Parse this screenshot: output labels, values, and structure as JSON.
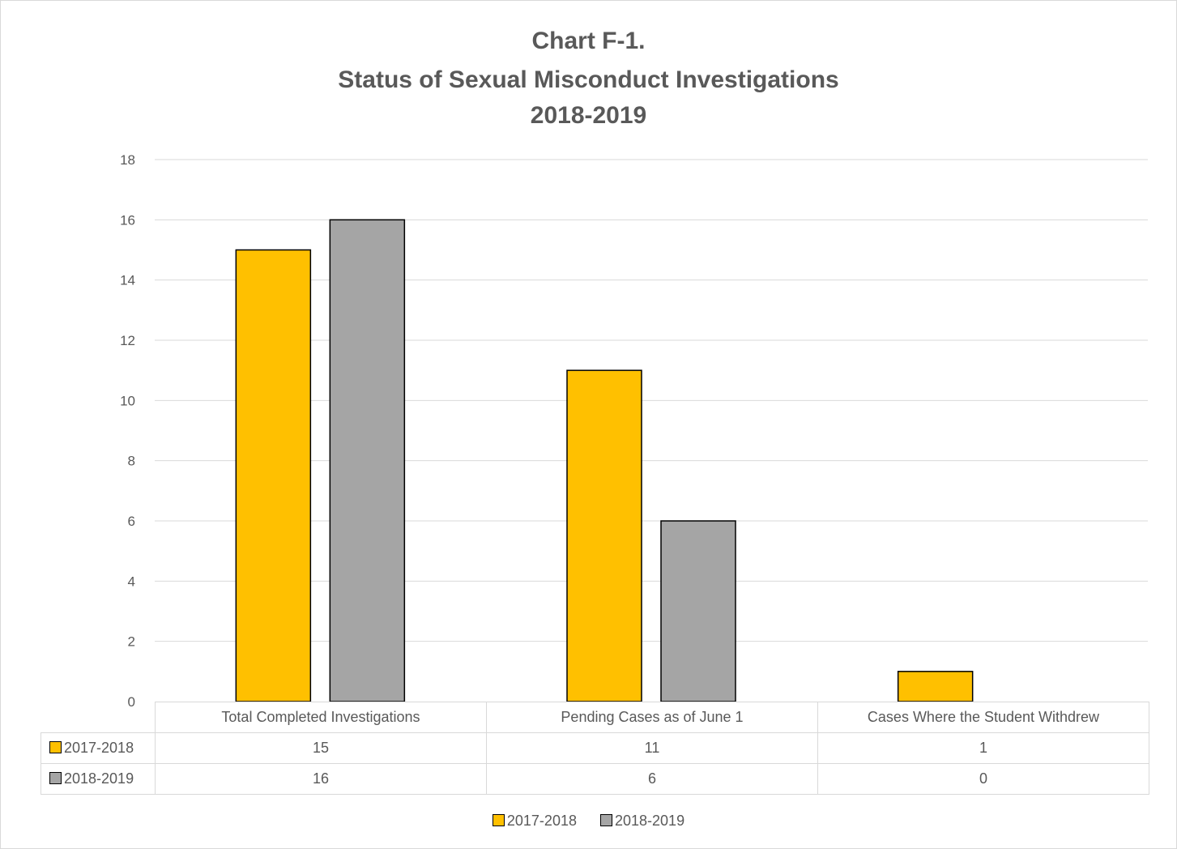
{
  "chart_data": {
    "type": "bar",
    "title": [
      "Chart F-1.",
      "Status of Sexual Misconduct Investigations",
      "2018-2019"
    ],
    "categories": [
      "Total Completed Investigations",
      "Pending Cases as of June 1",
      "Cases Where the Student Withdrew"
    ],
    "series": [
      {
        "name": "2017-2018",
        "values": [
          15,
          11,
          1
        ],
        "color": "#FFC000"
      },
      {
        "name": "2018-2019",
        "values": [
          16,
          6,
          0
        ],
        "color": "#A5A5A5"
      }
    ],
    "ylim": [
      0,
      18
    ],
    "yticks": [
      0,
      2,
      4,
      6,
      8,
      10,
      12,
      14,
      16,
      18
    ],
    "grid": true,
    "legend": "bottom",
    "data_table": true
  }
}
